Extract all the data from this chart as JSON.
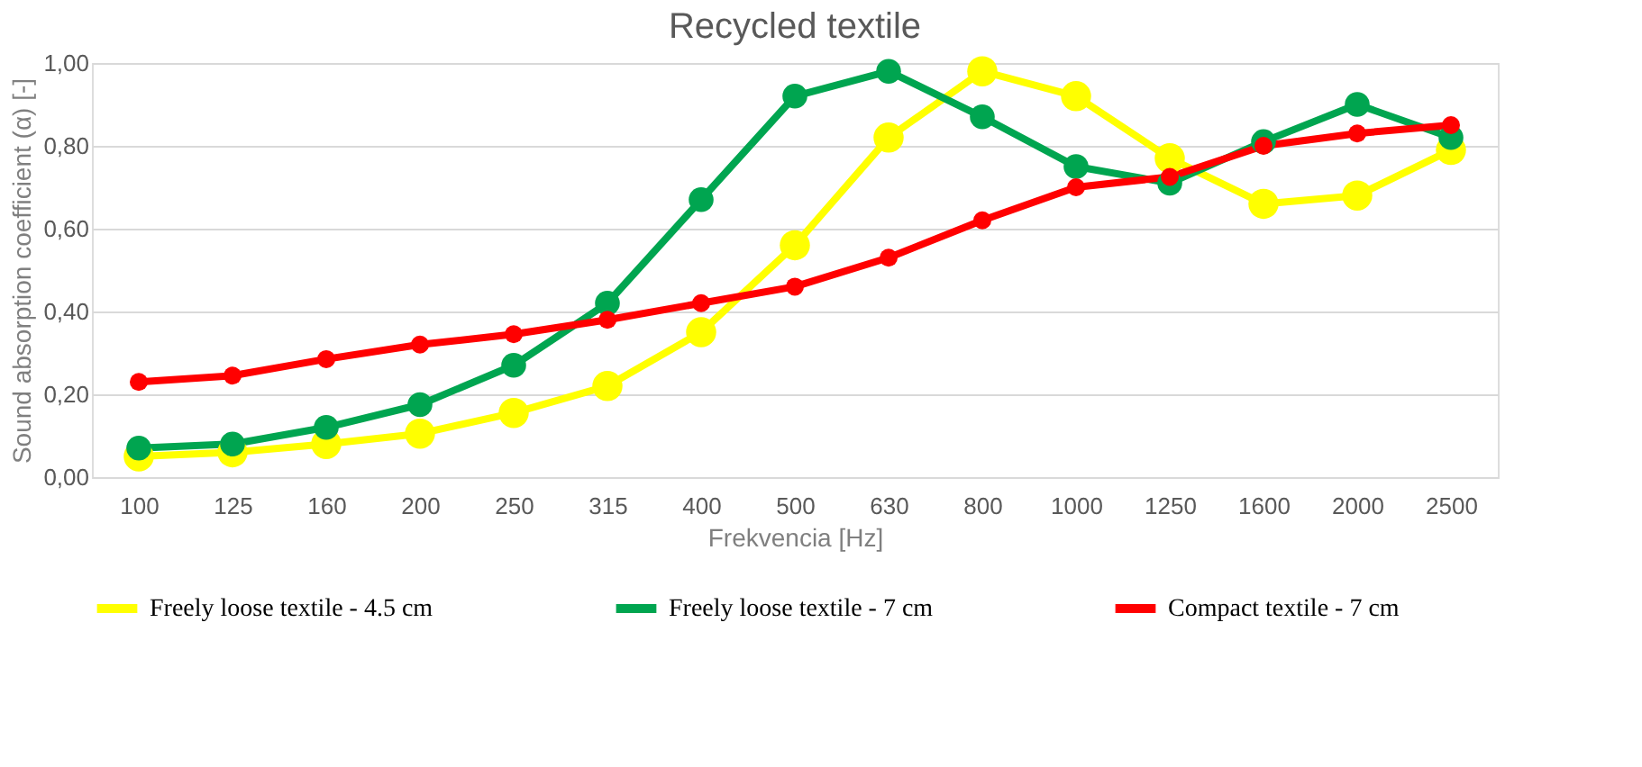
{
  "chart_data": {
    "type": "line",
    "title": "Recycled textile",
    "xlabel": "Frekvencia [Hz]",
    "ylabel": "Sound absorption coefficient  (α) [-]",
    "categories": [
      "100",
      "125",
      "160",
      "200",
      "250",
      "315",
      "400",
      "500",
      "630",
      "800",
      "1000",
      "1250",
      "1600",
      "2000",
      "2500"
    ],
    "series": [
      {
        "name": "Freely loose textile - 4.5 cm",
        "color": "#ffff00",
        "values": [
          0.05,
          0.06,
          0.08,
          0.105,
          0.155,
          0.22,
          0.35,
          0.56,
          0.82,
          0.98,
          0.92,
          0.77,
          0.66,
          0.68,
          0.79
        ]
      },
      {
        "name": "Freely loose textile - 7 cm",
        "color": "#00a550",
        "values": [
          0.07,
          0.08,
          0.12,
          0.175,
          0.27,
          0.42,
          0.67,
          0.92,
          0.98,
          0.87,
          0.75,
          0.71,
          0.81,
          0.9,
          0.82
        ]
      },
      {
        "name": "Compact textile - 7 cm",
        "color": "#ff0000",
        "values": [
          0.23,
          0.245,
          0.285,
          0.32,
          0.345,
          0.38,
          0.42,
          0.46,
          0.53,
          0.62,
          0.7,
          0.725,
          0.8,
          0.83,
          0.85
        ]
      }
    ],
    "ylim": [
      0,
      1
    ],
    "yticks": [
      {
        "value": 0,
        "label": "0,00"
      },
      {
        "value": 0.2,
        "label": "0,20"
      },
      {
        "value": 0.4,
        "label": "0,40"
      },
      {
        "value": 0.6,
        "label": "0,60"
      },
      {
        "value": 0.8,
        "label": "0,80"
      },
      {
        "value": 1,
        "label": "1,00"
      }
    ],
    "grid": "y",
    "legend": "bottom",
    "marker": "circle",
    "line_style": "solid"
  }
}
